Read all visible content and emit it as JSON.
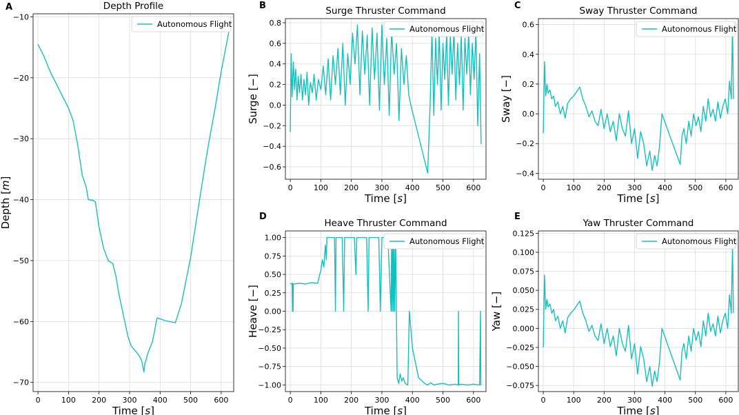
{
  "colors": {
    "series": "#13c0c0",
    "grid": "#dcdcdc",
    "axis": "#000000"
  },
  "chart_data": [
    {
      "panel": "A",
      "type": "line",
      "title": "Depth Profile",
      "xlabel": "Time [s]",
      "ylabel": "Depth [m]",
      "xlim": [
        -16,
        641
      ],
      "ylim": [
        -71.5,
        -9.5
      ],
      "xticks": [
        0,
        100,
        200,
        300,
        400,
        500,
        600
      ],
      "yticks": [
        -70,
        -60,
        -50,
        -40,
        -30,
        -20,
        -10
      ],
      "xtick_labels": [
        "0",
        "100",
        "200",
        "300",
        "400",
        "500",
        "600"
      ],
      "ytick_labels": [
        "−70",
        "−60",
        "−50",
        "−40",
        "−30",
        "−20",
        "−10"
      ],
      "legend": "upper right",
      "series": [
        {
          "name": "Autonomous Flight",
          "x": [
            0,
            20,
            40,
            60,
            80,
            100,
            115,
            130,
            145,
            158,
            165,
            180,
            188,
            200,
            215,
            230,
            245,
            255,
            265,
            280,
            295,
            305,
            315,
            330,
            340,
            347,
            350,
            360,
            375,
            390,
            420,
            450,
            470,
            500,
            520,
            545,
            560,
            580,
            600,
            625
          ],
          "y": [
            -14.5,
            -16.5,
            -19,
            -21,
            -23,
            -25,
            -27,
            -31,
            -36,
            -38,
            -40,
            -40.1,
            -40.4,
            -44.5,
            -48,
            -50,
            -50.5,
            -52.5,
            -55.5,
            -59,
            -62.5,
            -64,
            -64.6,
            -65.5,
            -66.5,
            -68.3,
            -67,
            -65.2,
            -63.3,
            -59.4,
            -59.9,
            -60.2,
            -57,
            -49.5,
            -43,
            -35,
            -30.5,
            -25,
            -19,
            -12.5
          ]
        }
      ]
    },
    {
      "panel": "B",
      "type": "line",
      "title": "Surge Thruster Command",
      "xlabel": "Time [s]",
      "ylabel": "Surge [−]",
      "xlim": [
        -16,
        641
      ],
      "ylim": [
        -0.72,
        0.84
      ],
      "xticks": [
        0,
        100,
        200,
        300,
        400,
        500,
        600
      ],
      "yticks": [
        -0.6,
        -0.4,
        -0.2,
        0.0,
        0.2,
        0.4,
        0.6,
        0.8
      ],
      "xtick_labels": [
        "0",
        "100",
        "200",
        "300",
        "400",
        "500",
        "600"
      ],
      "ytick_labels": [
        "−0.6",
        "−0.4",
        "−0.2",
        "0.0",
        "0.2",
        "0.4",
        "0.6",
        "0.8"
      ],
      "legend": "upper right",
      "series": [
        {
          "name": "Autonomous Flight",
          "x": [
            0,
            3,
            6,
            10,
            14,
            18,
            22,
            26,
            30,
            35,
            40,
            45,
            50,
            55,
            60,
            66,
            72,
            78,
            85,
            92,
            100,
            108,
            116,
            124,
            132,
            140,
            148,
            156,
            164,
            172,
            180,
            188,
            196,
            204,
            212,
            220,
            228,
            236,
            244,
            252,
            260,
            268,
            276,
            284,
            292,
            300,
            308,
            316,
            324,
            332,
            340,
            348,
            356,
            364,
            372,
            380,
            388,
            395,
            450,
            458,
            464,
            470,
            476,
            482,
            488,
            494,
            500,
            506,
            512,
            518,
            524,
            530,
            536,
            542,
            548,
            554,
            560,
            566,
            572,
            578,
            584,
            590,
            596,
            602,
            608,
            614,
            620,
            625
          ],
          "y": [
            -0.26,
            0.5,
            0.08,
            0.42,
            0.15,
            0.35,
            0.05,
            0.28,
            0.12,
            0.3,
            0.05,
            0.25,
            0.1,
            0.32,
            0.0,
            0.22,
            0.12,
            0.3,
            0.05,
            0.25,
            0.15,
            0.38,
            0.1,
            0.45,
            0.05,
            0.48,
            0.2,
            0.55,
            0.1,
            0.6,
            0.0,
            0.5,
            0.2,
            0.7,
            0.4,
            0.78,
            0.1,
            0.72,
            0.3,
            0.68,
            0.0,
            0.75,
            0.25,
            0.7,
            -0.05,
            0.78,
            0.2,
            0.65,
            -0.1,
            0.72,
            0.3,
            0.6,
            -0.15,
            0.55,
            0.2,
            0.48,
            0.1,
            0.0,
            -0.66,
            0.0,
            0.72,
            -0.1,
            0.65,
            0.2,
            0.7,
            -0.05,
            0.6,
            0.25,
            0.7,
            0.0,
            0.68,
            0.3,
            0.72,
            0.05,
            0.6,
            0.2,
            0.68,
            -0.05,
            0.65,
            0.3,
            0.7,
            0.1,
            0.6,
            0.25,
            0.72,
            -0.2,
            0.5,
            -0.38
          ]
        }
      ]
    },
    {
      "panel": "C",
      "type": "line",
      "title": "Sway Thruster Command",
      "xlabel": "Time [s]",
      "ylabel": "Sway [−]",
      "xlim": [
        -16,
        641
      ],
      "ylim": [
        -0.44,
        0.64
      ],
      "xticks": [
        0,
        100,
        200,
        300,
        400,
        500,
        600
      ],
      "yticks": [
        -0.4,
        -0.2,
        0.0,
        0.2,
        0.4,
        0.6
      ],
      "xtick_labels": [
        "0",
        "100",
        "200",
        "300",
        "400",
        "500",
        "600"
      ],
      "ytick_labels": [
        "−0.4",
        "−0.2",
        "0.0",
        "0.2",
        "0.4",
        "0.6"
      ],
      "legend": "upper right",
      "series": [
        {
          "name": "Autonomous Flight",
          "x": [
            0,
            4,
            8,
            12,
            16,
            22,
            28,
            34,
            40,
            48,
            56,
            64,
            72,
            80,
            90,
            100,
            110,
            120,
            130,
            140,
            150,
            160,
            170,
            180,
            190,
            200,
            210,
            220,
            230,
            240,
            250,
            260,
            270,
            280,
            290,
            300,
            310,
            320,
            330,
            340,
            350,
            358,
            366,
            374,
            382,
            390,
            450,
            456,
            462,
            470,
            478,
            486,
            494,
            502,
            510,
            518,
            526,
            534,
            542,
            550,
            558,
            566,
            574,
            582,
            590,
            598,
            606,
            612,
            618,
            622,
            625
          ],
          "y": [
            -0.13,
            0.35,
            0.12,
            0.2,
            0.14,
            0.16,
            0.1,
            0.12,
            0.05,
            0.08,
            0.0,
            0.05,
            -0.03,
            0.07,
            0.1,
            0.12,
            0.15,
            0.18,
            0.1,
            0.05,
            -0.02,
            0.02,
            -0.05,
            -0.08,
            0.03,
            -0.1,
            0.0,
            -0.12,
            -0.05,
            -0.18,
            0.0,
            -0.1,
            -0.15,
            0.02,
            -0.2,
            -0.1,
            -0.3,
            -0.12,
            -0.2,
            -0.35,
            -0.25,
            -0.38,
            -0.28,
            -0.35,
            -0.22,
            0.0,
            -0.34,
            -0.15,
            -0.1,
            -0.2,
            -0.05,
            -0.15,
            0.0,
            -0.08,
            -0.02,
            -0.12,
            0.05,
            -0.05,
            0.1,
            -0.02,
            0.03,
            -0.05,
            0.08,
            -0.03,
            0.05,
            0.1,
            0.0,
            0.22,
            0.1,
            0.6,
            0.1
          ]
        }
      ]
    },
    {
      "panel": "D",
      "type": "line",
      "title": "Heave Thruster Command",
      "xlabel": "Time [s]",
      "ylabel": "Heave [−]",
      "xlim": [
        -16,
        641
      ],
      "ylim": [
        -1.09,
        1.09
      ],
      "xticks": [
        0,
        100,
        200,
        300,
        400,
        500,
        600
      ],
      "yticks": [
        -1.0,
        -0.75,
        -0.5,
        -0.25,
        0.0,
        0.25,
        0.5,
        0.75,
        1.0
      ],
      "xtick_labels": [
        "0",
        "100",
        "200",
        "300",
        "400",
        "500",
        "600"
      ],
      "ytick_labels": [
        "−1.00",
        "−0.75",
        "−0.50",
        "−0.25",
        "0.00",
        "0.25",
        "0.50",
        "0.75",
        "1.00"
      ],
      "legend": "upper right",
      "series": [
        {
          "name": "Autonomous Flight",
          "x": [
            0,
            6,
            7,
            8,
            9,
            10,
            30,
            50,
            70,
            90,
            95,
            100,
            105,
            110,
            115,
            118,
            120,
            130,
            145,
            148,
            150,
            160,
            170,
            175,
            178,
            180,
            190,
            200,
            210,
            215,
            218,
            220,
            230,
            240,
            250,
            255,
            258,
            260,
            270,
            280,
            290,
            295,
            300,
            310,
            320,
            330,
            332,
            334,
            336,
            338,
            340,
            342,
            345,
            350,
            355,
            360,
            365,
            370,
            375,
            380,
            385,
            390,
            400,
            420,
            440,
            450,
            460,
            470,
            480,
            500,
            520,
            540,
            550,
            551,
            552,
            560,
            580,
            600,
            620,
            623,
            624,
            625
          ],
          "y": [
            0.37,
            0.38,
            0.0,
            0.38,
            0.0,
            0.37,
            0.38,
            0.37,
            0.39,
            0.38,
            0.48,
            0.55,
            0.7,
            0.6,
            0.9,
            0.7,
            1.0,
            1.0,
            1.0,
            0.0,
            1.0,
            1.0,
            1.0,
            0.0,
            1.0,
            1.0,
            1.0,
            1.0,
            1.0,
            0.5,
            1.0,
            1.0,
            1.0,
            1.0,
            1.0,
            0.0,
            1.0,
            1.0,
            1.0,
            1.0,
            1.0,
            0.0,
            1.0,
            1.0,
            0.95,
            0.0,
            1.0,
            0.0,
            1.0,
            0.0,
            1.0,
            0.0,
            1.0,
            -0.9,
            -0.98,
            -0.85,
            -0.95,
            -0.9,
            -0.97,
            -0.99,
            -1.0,
            0.0,
            -0.5,
            -0.9,
            -0.98,
            -1.0,
            -0.97,
            -1.0,
            -0.99,
            -0.98,
            -1.0,
            -0.99,
            -1.0,
            0.0,
            -1.0,
            -0.99,
            -1.0,
            -0.99,
            -1.0,
            0.0,
            -1.0,
            -0.99
          ]
        }
      ]
    },
    {
      "panel": "E",
      "type": "line",
      "title": "Yaw Thruster Command",
      "xlabel": "Time [s]",
      "ylabel": "Yaw [−]",
      "xlim": [
        -16,
        641
      ],
      "ylim": [
        -0.083,
        0.128
      ],
      "xticks": [
        0,
        100,
        200,
        300,
        400,
        500,
        600
      ],
      "yticks": [
        -0.075,
        -0.05,
        -0.025,
        0.0,
        0.025,
        0.05,
        0.075,
        0.1,
        0.125
      ],
      "xtick_labels": [
        "0",
        "100",
        "200",
        "300",
        "400",
        "500",
        "600"
      ],
      "ytick_labels": [
        "−0.075",
        "−0.050",
        "−0.025",
        "0.000",
        "0.025",
        "0.050",
        "0.075",
        "0.100",
        "0.125"
      ],
      "legend": "upper right",
      "series": [
        {
          "name": "Autonomous Flight",
          "x": [
            0,
            4,
            8,
            12,
            16,
            22,
            28,
            34,
            40,
            48,
            56,
            64,
            72,
            80,
            90,
            100,
            110,
            120,
            130,
            140,
            150,
            160,
            170,
            180,
            190,
            200,
            210,
            220,
            230,
            240,
            250,
            260,
            270,
            280,
            290,
            300,
            310,
            320,
            330,
            340,
            350,
            358,
            366,
            374,
            382,
            390,
            450,
            456,
            462,
            470,
            478,
            486,
            494,
            502,
            510,
            518,
            526,
            534,
            542,
            550,
            558,
            566,
            574,
            582,
            590,
            598,
            606,
            612,
            618,
            622,
            625
          ],
          "y": [
            -0.025,
            0.07,
            0.025,
            0.038,
            0.028,
            0.032,
            0.02,
            0.025,
            0.01,
            0.016,
            0.0,
            0.01,
            -0.006,
            0.014,
            0.02,
            0.024,
            0.03,
            0.036,
            0.02,
            0.01,
            -0.004,
            0.004,
            -0.01,
            -0.016,
            0.006,
            -0.02,
            0.0,
            -0.024,
            -0.01,
            -0.036,
            0.0,
            -0.02,
            -0.03,
            0.004,
            -0.04,
            -0.02,
            -0.06,
            -0.024,
            -0.04,
            -0.07,
            -0.05,
            -0.076,
            -0.056,
            -0.07,
            -0.044,
            0.0,
            -0.068,
            -0.03,
            -0.02,
            -0.04,
            -0.01,
            -0.03,
            0.0,
            -0.016,
            -0.004,
            -0.024,
            0.01,
            -0.01,
            0.02,
            -0.004,
            0.006,
            -0.01,
            0.016,
            -0.006,
            0.01,
            0.02,
            0.0,
            0.044,
            0.02,
            0.11,
            0.02
          ]
        }
      ]
    }
  ]
}
